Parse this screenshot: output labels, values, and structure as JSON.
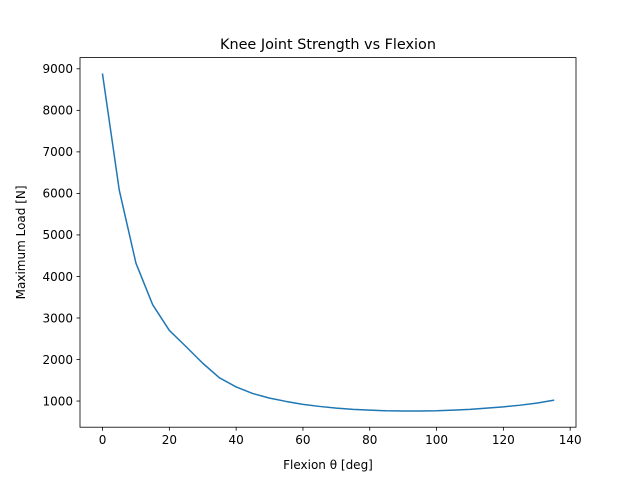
{
  "chart_data": {
    "type": "line",
    "title": "Knee Joint Strength vs Flexion",
    "xlabel": "Flexion θ [deg]",
    "ylabel": "Maximum Load [N]",
    "xlim": [
      -6.75,
      141.75
    ],
    "ylim": [
      370,
      9270
    ],
    "xticks": [
      0,
      20,
      40,
      60,
      80,
      100,
      120,
      140
    ],
    "yticks": [
      1000,
      2000,
      3000,
      4000,
      5000,
      6000,
      7000,
      8000,
      9000
    ],
    "grid": false,
    "series": [
      {
        "color": "#1f77b4",
        "x": [
          0,
          5,
          10,
          15,
          20,
          25,
          30,
          35,
          40,
          45,
          50,
          55,
          60,
          65,
          70,
          75,
          80,
          85,
          90,
          95,
          100,
          105,
          110,
          115,
          120,
          125,
          130,
          135
        ],
        "y": [
          8870,
          6080,
          4320,
          3320,
          2700,
          2310,
          1910,
          1560,
          1340,
          1180,
          1070,
          990,
          920,
          870,
          830,
          800,
          780,
          765,
          760,
          760,
          765,
          780,
          800,
          830,
          860,
          900,
          950,
          1020
        ]
      }
    ]
  }
}
